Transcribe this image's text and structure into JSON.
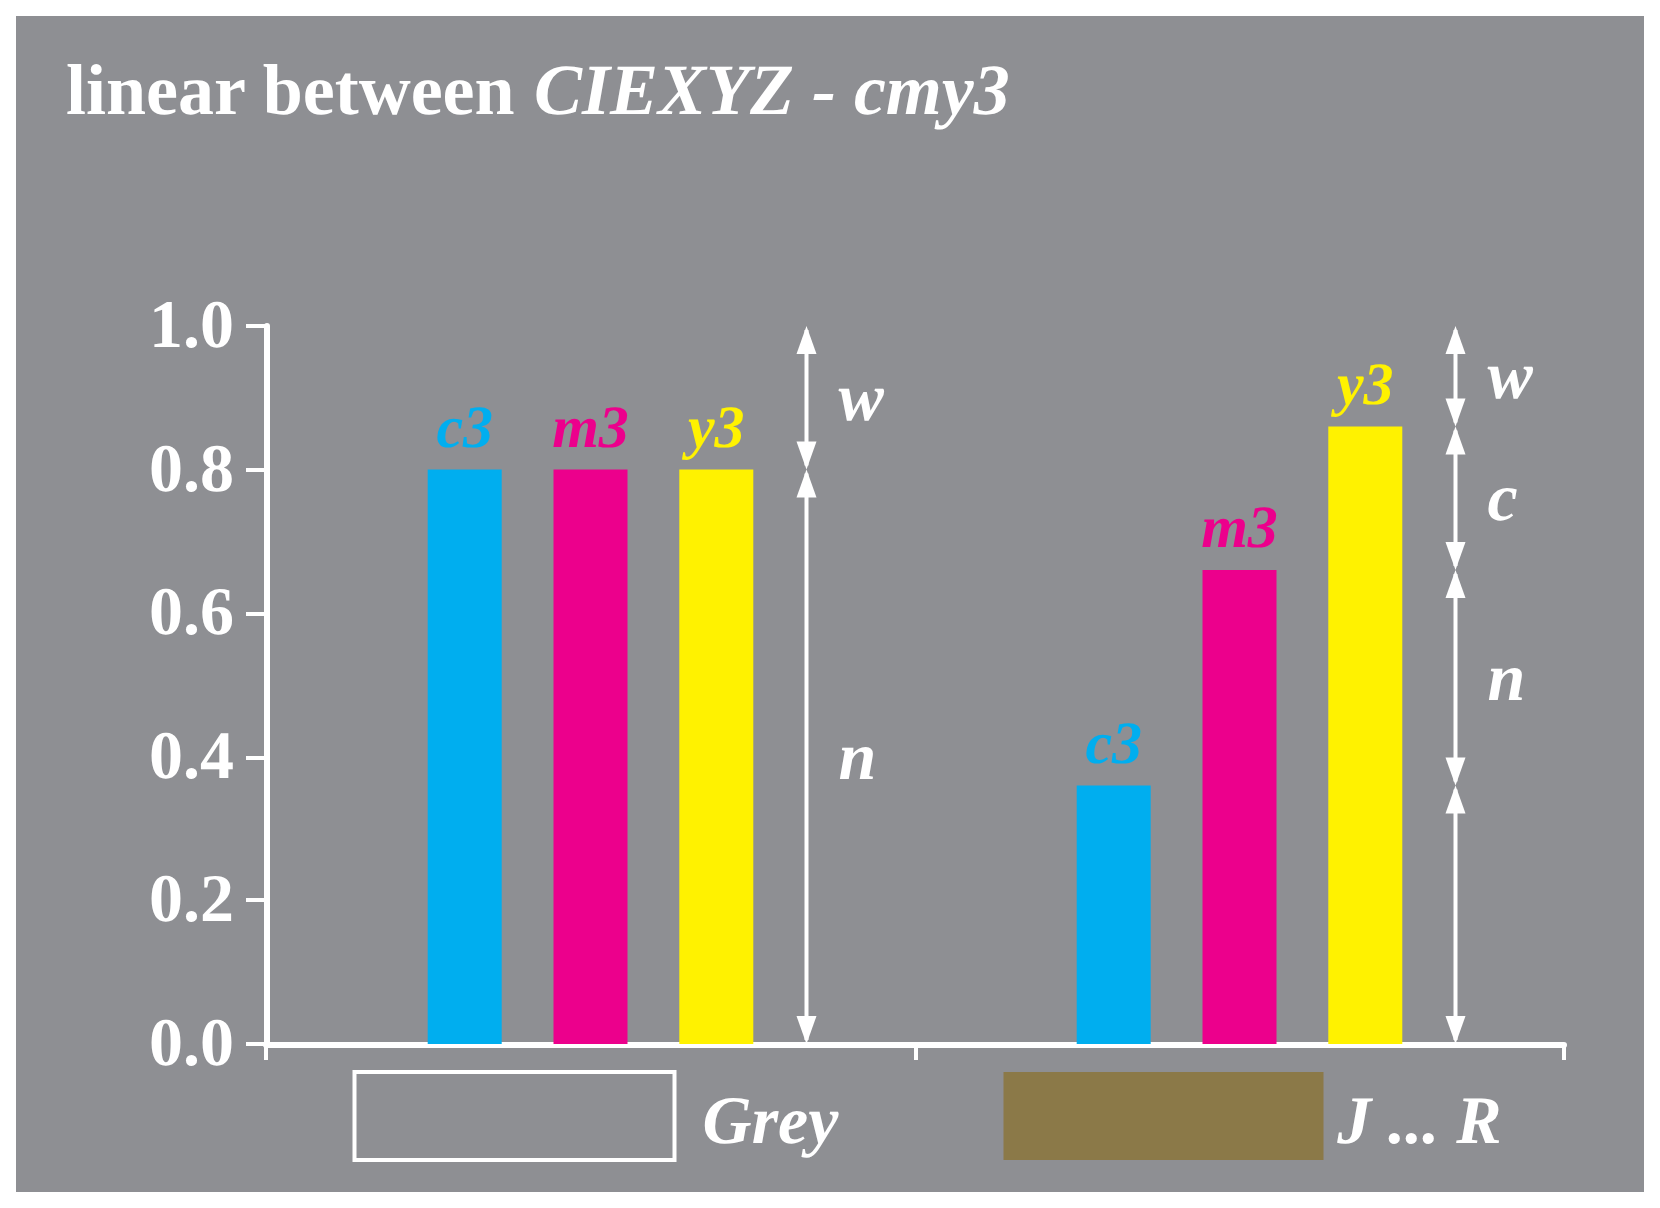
{
  "chart_data": {
    "type": "bar",
    "title": "linear between CIEXYZ - cmy3",
    "categories": [
      "Grey",
      "J ... R"
    ],
    "series": [
      {
        "name": "c3",
        "color": "#00aeef",
        "values": [
          0.8,
          0.36
        ]
      },
      {
        "name": "m3",
        "color": "#ec008c",
        "values": [
          0.8,
          0.66
        ]
      },
      {
        "name": "y3",
        "color": "#fff200",
        "values": [
          0.8,
          0.86
        ]
      }
    ],
    "ylim": [
      0,
      1
    ],
    "yticks": [
      {
        "value": 0,
        "label": "0.0"
      },
      {
        "value": 0.2,
        "label": "0.2"
      },
      {
        "value": 0.4,
        "label": "0.4"
      },
      {
        "value": 0.6,
        "label": "0.6"
      },
      {
        "value": 0.8,
        "label": "0.8"
      },
      {
        "value": 1,
        "label": "1.0"
      }
    ],
    "grid": false,
    "legend": false,
    "annotations": [
      "w",
      "n",
      "w",
      "c",
      "n"
    ]
  }
}
